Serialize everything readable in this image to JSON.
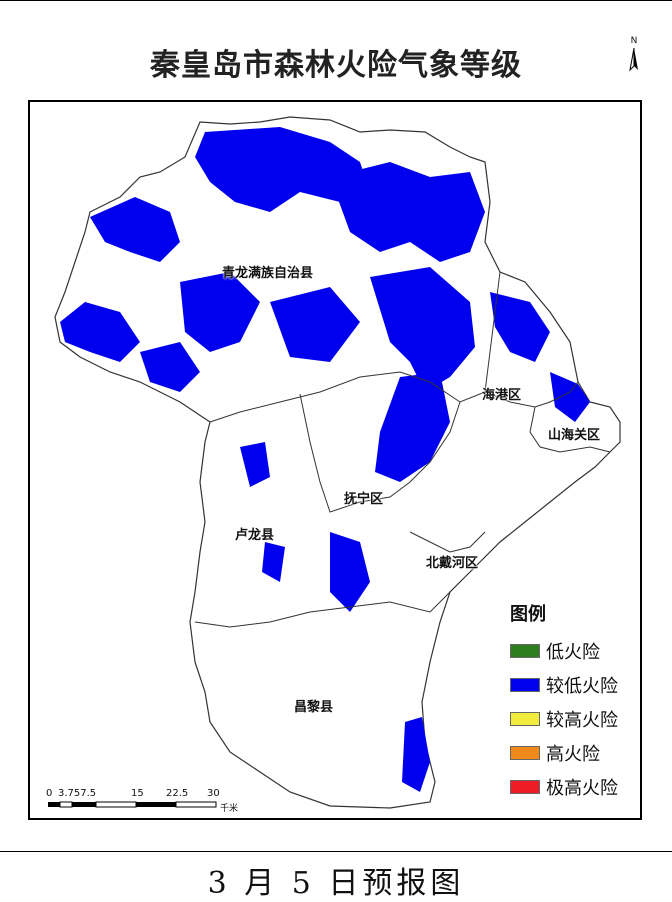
{
  "map": {
    "title": "秦皇岛市森林火险气象等级",
    "north_label": "N",
    "districts": [
      {
        "name": "青龙满族自治县",
        "id": "qinglong"
      },
      {
        "name": "海港区",
        "id": "haigang"
      },
      {
        "name": "山海关区",
        "id": "shanhaiguan"
      },
      {
        "name": "抚宁区",
        "id": "funing"
      },
      {
        "name": "卢龙县",
        "id": "lulong"
      },
      {
        "name": "北戴河区",
        "id": "beidaihe"
      },
      {
        "name": "昌黎县",
        "id": "changli"
      }
    ],
    "forecast_level_shown": "较低火险"
  },
  "legend": {
    "title": "图例",
    "items": [
      {
        "label": "低火险",
        "color": "#2e7d1e"
      },
      {
        "label": "较低火险",
        "color": "#0000ee"
      },
      {
        "label": "较高火险",
        "color": "#f2ec3c"
      },
      {
        "label": "高火险",
        "color": "#ee8a1a"
      },
      {
        "label": "极高火险",
        "color": "#ee1c24"
      }
    ]
  },
  "scale": {
    "ticks": [
      "0",
      "3.757.5",
      "15",
      "22.5",
      "30"
    ],
    "unit": "千米"
  },
  "footer": {
    "text": "3 月 5 日预报图"
  }
}
